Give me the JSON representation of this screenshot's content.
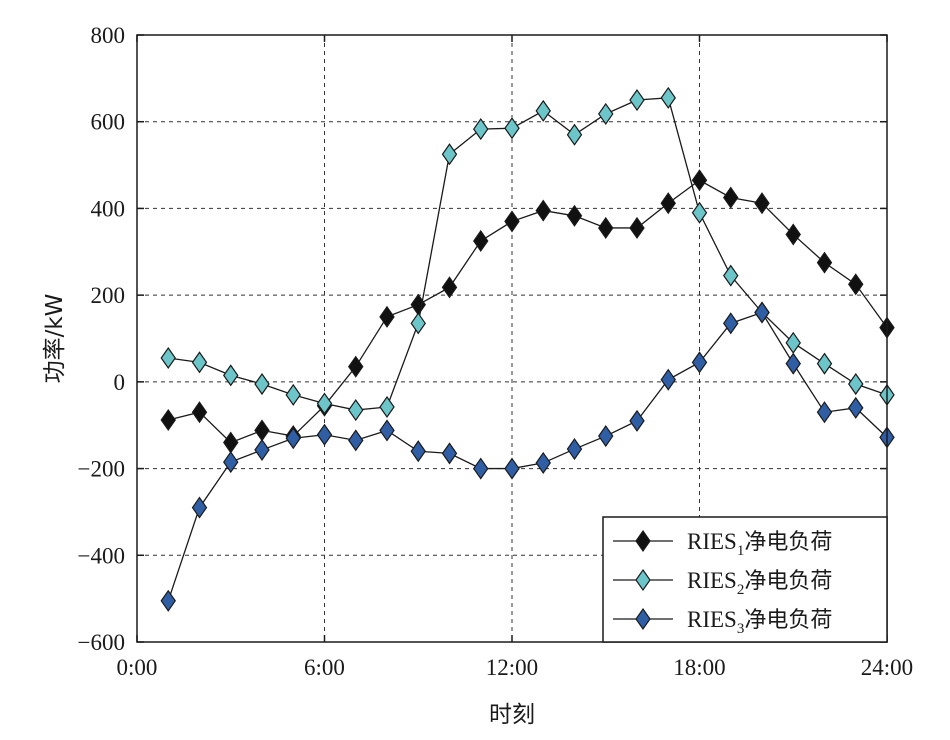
{
  "chart_data": {
    "type": "line",
    "xlabel": "时刻",
    "ylabel": "功率/kW",
    "x": [
      1,
      2,
      3,
      4,
      5,
      6,
      7,
      8,
      9,
      10,
      11,
      12,
      13,
      14,
      15,
      16,
      17,
      18,
      19,
      20,
      21,
      22,
      23,
      24
    ],
    "xlim": [
      0,
      24
    ],
    "ylim": [
      -600,
      800
    ],
    "x_ticks": [
      {
        "value": 0,
        "label": "0:00"
      },
      {
        "value": 6,
        "label": "6:00"
      },
      {
        "value": 12,
        "label": "12:00"
      },
      {
        "value": 18,
        "label": "18:00"
      },
      {
        "value": 24,
        "label": "24:00"
      }
    ],
    "y_ticks": [
      {
        "value": 800,
        "label": "800"
      },
      {
        "value": 600,
        "label": "600"
      },
      {
        "value": 400,
        "label": "400"
      },
      {
        "value": 200,
        "label": "200"
      },
      {
        "value": 0,
        "label": "0"
      },
      {
        "value": -200,
        "label": "−200"
      },
      {
        "value": -400,
        "label": "−400"
      },
      {
        "value": -600,
        "label": "−600"
      }
    ],
    "grid": true,
    "legend_position": "bottom-right",
    "series": [
      {
        "name": "RIES1净电负荷",
        "legend": {
          "prefix": "RIES",
          "sub": "1",
          "suffix": "净电负荷"
        },
        "color": "#111111",
        "marker": "diamond",
        "values": [
          -88,
          -70,
          -140,
          -112,
          -125,
          -55,
          35,
          150,
          178,
          218,
          325,
          370,
          395,
          383,
          355,
          355,
          412,
          465,
          425,
          412,
          340,
          275,
          225,
          125
        ]
      },
      {
        "name": "RIES2净电负荷",
        "legend": {
          "prefix": "RIES",
          "sub": "2",
          "suffix": "净电负荷"
        },
        "color": "#6cc6c9",
        "marker": "diamond",
        "values": [
          55,
          45,
          15,
          -5,
          -30,
          -50,
          -65,
          -58,
          135,
          525,
          583,
          585,
          625,
          570,
          618,
          650,
          655,
          390,
          245,
          160,
          90,
          42,
          -5,
          -30
        ]
      },
      {
        "name": "RIES3净电负荷",
        "legend": {
          "prefix": "RIES",
          "sub": "3",
          "suffix": "净电负荷"
        },
        "color": "#2f5ea5",
        "marker": "diamond",
        "values": [
          -505,
          -290,
          -185,
          -157,
          -130,
          -122,
          -135,
          -112,
          -160,
          -165,
          -200,
          -200,
          -187,
          -155,
          -125,
          -90,
          5,
          45,
          135,
          160,
          42,
          -70,
          -60,
          -128
        ]
      }
    ]
  }
}
